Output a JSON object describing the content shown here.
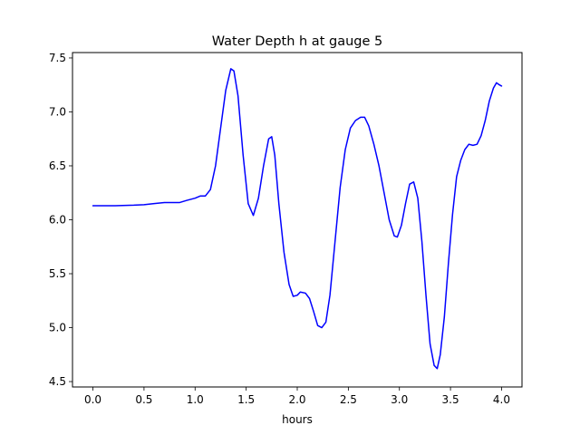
{
  "chart_data": {
    "type": "line",
    "title": "Water Depth h at gauge 5",
    "xlabel": "hours",
    "ylabel": "",
    "xlim": [
      -0.2,
      4.2
    ],
    "ylim": [
      4.45,
      7.55
    ],
    "grid": false,
    "xticks": [
      0.0,
      0.5,
      1.0,
      1.5,
      2.0,
      2.5,
      3.0,
      3.5,
      4.0
    ],
    "xtick_labels": [
      "0.0",
      "0.5",
      "1.0",
      "1.5",
      "2.0",
      "2.5",
      "3.0",
      "3.5",
      "4.0"
    ],
    "yticks": [
      4.5,
      5.0,
      5.5,
      6.0,
      6.5,
      7.0,
      7.5
    ],
    "ytick_labels": [
      "4.5",
      "5.0",
      "5.5",
      "6.0",
      "6.5",
      "7.0",
      "7.5"
    ],
    "series": [
      {
        "color": "#0000ff",
        "points": [
          [
            0.0,
            6.13
          ],
          [
            0.2,
            6.13
          ],
          [
            0.4,
            6.135
          ],
          [
            0.5,
            6.14
          ],
          [
            0.6,
            6.15
          ],
          [
            0.7,
            6.16
          ],
          [
            0.85,
            6.16
          ],
          [
            0.92,
            6.18
          ],
          [
            1.0,
            6.2
          ],
          [
            1.05,
            6.22
          ],
          [
            1.1,
            6.22
          ],
          [
            1.15,
            6.28
          ],
          [
            1.2,
            6.5
          ],
          [
            1.25,
            6.85
          ],
          [
            1.3,
            7.2
          ],
          [
            1.35,
            7.4
          ],
          [
            1.38,
            7.38
          ],
          [
            1.42,
            7.15
          ],
          [
            1.47,
            6.6
          ],
          [
            1.52,
            6.15
          ],
          [
            1.57,
            6.04
          ],
          [
            1.62,
            6.2
          ],
          [
            1.67,
            6.5
          ],
          [
            1.72,
            6.75
          ],
          [
            1.75,
            6.77
          ],
          [
            1.78,
            6.6
          ],
          [
            1.82,
            6.15
          ],
          [
            1.87,
            5.7
          ],
          [
            1.92,
            5.4
          ],
          [
            1.96,
            5.29
          ],
          [
            2.0,
            5.3
          ],
          [
            2.03,
            5.33
          ],
          [
            2.08,
            5.32
          ],
          [
            2.12,
            5.27
          ],
          [
            2.16,
            5.15
          ],
          [
            2.2,
            5.02
          ],
          [
            2.24,
            5.0
          ],
          [
            2.28,
            5.05
          ],
          [
            2.32,
            5.3
          ],
          [
            2.37,
            5.8
          ],
          [
            2.42,
            6.3
          ],
          [
            2.47,
            6.65
          ],
          [
            2.52,
            6.85
          ],
          [
            2.57,
            6.92
          ],
          [
            2.62,
            6.95
          ],
          [
            2.66,
            6.95
          ],
          [
            2.7,
            6.87
          ],
          [
            2.75,
            6.7
          ],
          [
            2.8,
            6.5
          ],
          [
            2.85,
            6.25
          ],
          [
            2.9,
            6.0
          ],
          [
            2.95,
            5.85
          ],
          [
            2.98,
            5.84
          ],
          [
            3.02,
            5.95
          ],
          [
            3.06,
            6.15
          ],
          [
            3.1,
            6.33
          ],
          [
            3.14,
            6.35
          ],
          [
            3.18,
            6.2
          ],
          [
            3.22,
            5.8
          ],
          [
            3.26,
            5.3
          ],
          [
            3.3,
            4.85
          ],
          [
            3.34,
            4.65
          ],
          [
            3.37,
            4.62
          ],
          [
            3.4,
            4.75
          ],
          [
            3.44,
            5.1
          ],
          [
            3.48,
            5.6
          ],
          [
            3.52,
            6.05
          ],
          [
            3.56,
            6.4
          ],
          [
            3.6,
            6.55
          ],
          [
            3.64,
            6.65
          ],
          [
            3.68,
            6.7
          ],
          [
            3.72,
            6.69
          ],
          [
            3.76,
            6.7
          ],
          [
            3.8,
            6.78
          ],
          [
            3.84,
            6.92
          ],
          [
            3.88,
            7.1
          ],
          [
            3.92,
            7.22
          ],
          [
            3.95,
            7.27
          ],
          [
            3.98,
            7.25
          ],
          [
            4.0,
            7.24
          ]
        ]
      }
    ]
  }
}
